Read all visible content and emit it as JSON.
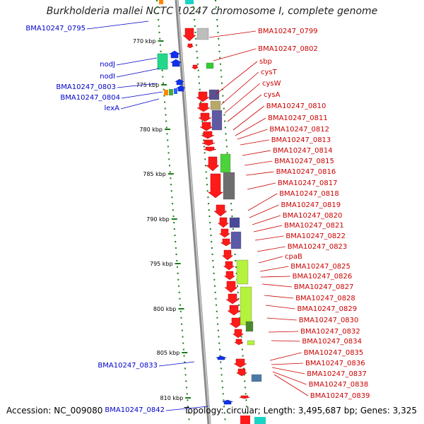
{
  "title": "Burkholderia mallei NCTC 10247 chromosome I, complete genome",
  "footer": {
    "accession": "Accession: NC_009080",
    "topology": "Topology: circular; Length: 3,495,687 bp; Genes: 3,325"
  },
  "colors": {
    "left_label": "#0000cc",
    "right_label": "#cc0000",
    "axis": "#999999",
    "ruler": "#1a7a1a"
  },
  "ruler": [
    {
      "label": "770 kbp"
    },
    {
      "label": "775 kbp"
    },
    {
      "label": "780 kbp"
    },
    {
      "label": "785 kbp"
    },
    {
      "label": "790 kbp"
    },
    {
      "label": "795 kbp"
    },
    {
      "label": "800 kbp"
    },
    {
      "label": "805 kbp"
    },
    {
      "label": "810 kbp"
    }
  ],
  "left_labels": [
    "BMA10247_0795",
    "nodJ",
    "nodI",
    "BMA10247_0803",
    "BMA10247_0804",
    "lexA",
    "BMA10247_0833",
    "BMA10247_0842"
  ],
  "right_labels": [
    "BMA10247_0799",
    "BMA10247_0802",
    "sbp",
    "cysT",
    "cysW",
    "cysA",
    "BMA10247_0810",
    "BMA10247_0811",
    "BMA10247_0812",
    "BMA10247_0813",
    "BMA10247_0814",
    "BMA10247_0815",
    "BMA10247_0816",
    "BMA10247_0817",
    "BMA10247_0818",
    "BMA10247_0819",
    "BMA10247_0820",
    "BMA10247_0821",
    "BMA10247_0822",
    "BMA10247_0823",
    "cpaB",
    "BMA10247_0825",
    "BMA10247_0826",
    "BMA10247_0827",
    "BMA10247_0828",
    "BMA10247_0829",
    "BMA10247_0830",
    "BMA10247_0832",
    "BMA10247_0834",
    "BMA10247_0835",
    "BMA10247_0836",
    "BMA10247_0837",
    "BMA10247_0838",
    "BMA10247_0839"
  ]
}
